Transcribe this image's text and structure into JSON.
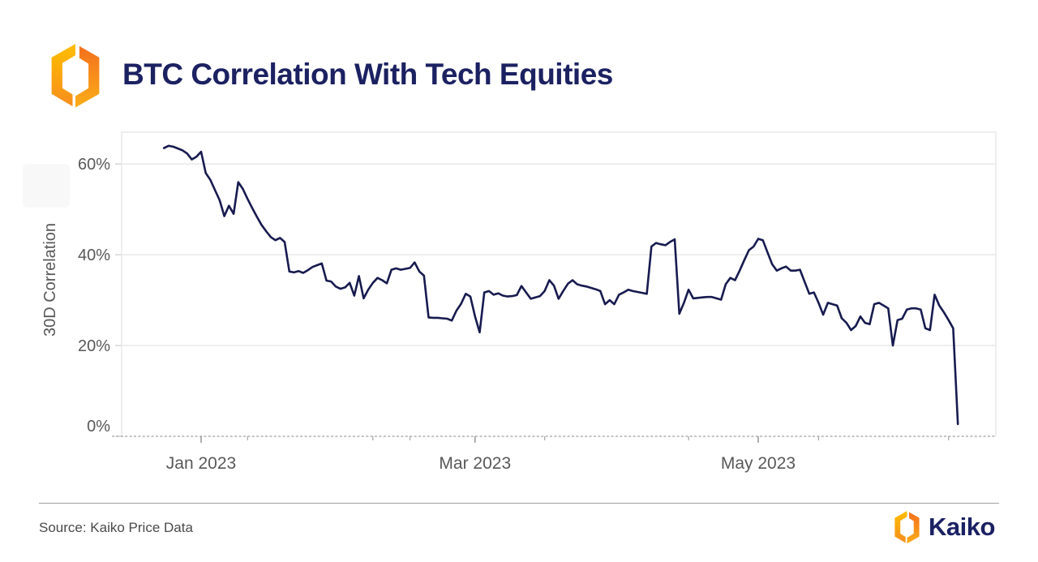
{
  "header": {
    "title": "BTC Correlation With Tech Equities"
  },
  "footer": {
    "source": "Source: Kaiko Price Data",
    "brand": "Kaiko"
  },
  "colors": {
    "line": "#171b4f",
    "title_navy": "#1b2161",
    "wordmark_navy": "#1b2163",
    "axis_text": "#595959",
    "gridline": "#e6e6e6",
    "plot_border": "#e3e3e3",
    "dashed_axis": "#b0b0b0",
    "logo_left_top": "#FFBE00",
    "logo_left_bottom": "#F78E1E",
    "logo_right_top": "#F4701D",
    "logo_right_bottom": "#FBAD18"
  },
  "chart_data": {
    "type": "line",
    "title": "BTC Correlation With Tech Equities",
    "xlabel": "",
    "ylabel": "30D Correlation",
    "legend": "none",
    "grid": "horizontal",
    "ylim": [
      0,
      67
    ],
    "y_ticks": [
      {
        "value": 0,
        "label": "0%"
      },
      {
        "value": 20,
        "label": "20%"
      },
      {
        "value": 40,
        "label": "40%"
      },
      {
        "value": 60,
        "label": "60%"
      }
    ],
    "x_start_date": "2022-12-24",
    "x_end_date": "2023-06-13",
    "frequency": "daily",
    "x_major_ticks": [
      {
        "index": 8,
        "label": "Jan 2023"
      },
      {
        "index": 67,
        "label": "Mar 2023"
      },
      {
        "index": 128,
        "label": "May 2023"
      }
    ],
    "x_minor_tick_indexes": [
      18,
      45,
      53,
      82,
      113,
      141,
      169
    ],
    "series": [
      {
        "name": "BTC 30D correlation with tech equities (%)",
        "values": [
          63.5,
          64.0,
          63.8,
          63.4,
          63.0,
          62.3,
          61.0,
          61.6,
          62.7,
          58.0,
          56.5,
          54.2,
          52.0,
          48.5,
          50.8,
          49.0,
          56.0,
          54.5,
          52.3,
          50.3,
          48.4,
          46.6,
          45.2,
          43.9,
          43.2,
          43.7,
          42.8,
          36.3,
          36.1,
          36.4,
          36.0,
          36.6,
          37.3,
          37.7,
          38.1,
          34.3,
          34.1,
          33.0,
          32.5,
          32.8,
          33.8,
          31.0,
          35.3,
          30.4,
          32.3,
          33.8,
          34.9,
          34.4,
          33.7,
          36.7,
          37.0,
          36.7,
          36.9,
          37.1,
          38.3,
          36.3,
          35.4,
          26.2,
          26.1,
          26.1,
          26.0,
          25.9,
          25.5,
          27.7,
          29.2,
          31.4,
          30.8,
          26.4,
          22.9,
          31.7,
          32.0,
          31.2,
          31.5,
          31.0,
          30.8,
          30.9,
          31.1,
          33.1,
          31.7,
          30.3,
          30.6,
          30.9,
          32.0,
          34.4,
          33.2,
          30.3,
          32.0,
          33.6,
          34.4,
          33.5,
          33.2,
          33.0,
          32.7,
          32.4,
          32.0,
          29.1,
          30.0,
          29.1,
          31.2,
          31.7,
          32.3,
          32.0,
          31.8,
          31.6,
          31.4,
          41.8,
          42.6,
          42.3,
          42.1,
          42.8,
          43.4,
          27.0,
          29.4,
          32.3,
          30.4,
          30.5,
          30.6,
          30.7,
          30.7,
          30.4,
          30.1,
          33.5,
          34.9,
          34.4,
          36.5,
          38.8,
          41.0,
          41.8,
          43.5,
          43.2,
          40.5,
          37.9,
          36.5,
          37.0,
          37.4,
          36.5,
          36.5,
          36.7,
          34.0,
          31.4,
          31.7,
          29.4,
          26.8,
          29.4,
          29.1,
          28.8,
          26.0,
          25.0,
          23.4,
          24.3,
          26.4,
          25.0,
          24.7,
          29.1,
          29.4,
          28.8,
          28.2,
          20.0,
          25.6,
          25.9,
          27.9,
          28.2,
          28.2,
          27.9,
          23.8,
          23.4,
          31.2,
          28.8,
          27.3,
          25.6,
          23.8,
          2.7
        ]
      }
    ]
  }
}
